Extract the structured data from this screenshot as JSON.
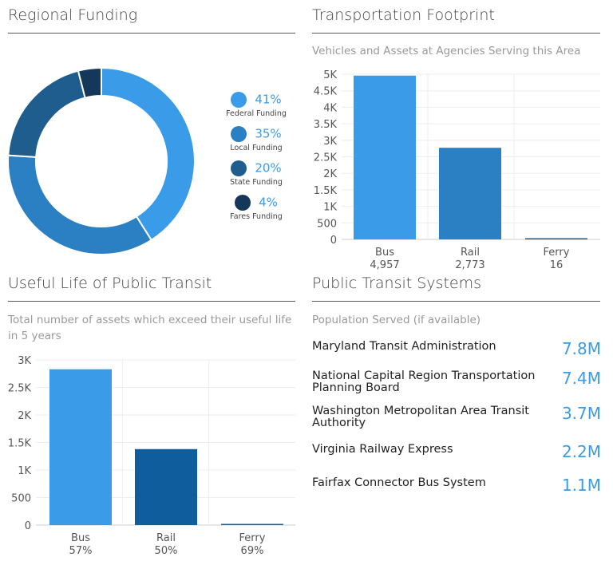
{
  "panels": {
    "regional": {
      "title": "Regional Funding"
    },
    "footprint": {
      "title": "Transportation Footprint",
      "subtitle": "Vehicles and Assets at Agencies Serving this Area"
    },
    "useful": {
      "title": "Useful Life of Public Transit",
      "subtitle": "Total number of assets which exceed their useful life in 5 years"
    },
    "systems": {
      "title": "Public Transit Systems",
      "subtitle": "Population Served (if available)",
      "items": [
        {
          "name": "Maryland Transit Administration",
          "value": "7.8M"
        },
        {
          "name": "National Capital Region Transportation Planning Board",
          "value": "7.4M"
        },
        {
          "name": "Washington Metropolitan Area Transit Authority",
          "value": "3.7M"
        },
        {
          "name": "Virginia Railway Express",
          "value": "2.2M"
        },
        {
          "name": "Fairfax Connector Bus System",
          "value": "1.1M"
        }
      ]
    }
  },
  "chart_data": [
    {
      "type": "pie",
      "donut": true,
      "legend": "right",
      "slices": [
        {
          "label": "Federal Funding",
          "value": 41,
          "display": "41%",
          "color": "#3a9be8"
        },
        {
          "label": "Local Funding",
          "value": 35,
          "display": "35%",
          "color": "#2b7fc3"
        },
        {
          "label": "State Funding",
          "value": 20,
          "display": "20%",
          "color": "#1f5d8e"
        },
        {
          "label": "Fares Funding",
          "value": 4,
          "display": "4%",
          "color": "#15375a"
        }
      ]
    },
    {
      "type": "bar",
      "categories": [
        "Bus",
        "Rail",
        "Ferry"
      ],
      "values": [
        4957,
        2773,
        16
      ],
      "value_labels": [
        "4,957",
        "2,773",
        "16"
      ],
      "colors": [
        "#3a9be8",
        "#2b7fc3",
        "#1f5d8e"
      ],
      "ylim": [
        0,
        5000
      ],
      "yticks": [
        "0",
        "500",
        "1K",
        "1.5K",
        "2K",
        "2.5K",
        "3K",
        "3.5K",
        "4K",
        "4.5K",
        "5K"
      ],
      "grid": true
    },
    {
      "type": "bar",
      "categories": [
        "Bus",
        "Rail",
        "Ferry"
      ],
      "values": [
        2830,
        1380,
        10
      ],
      "value_labels": [
        "57%",
        "50%",
        "69%"
      ],
      "colors": [
        "#3a9be8",
        "#0f5d9c",
        "#1f5d8e"
      ],
      "ylim": [
        0,
        3000
      ],
      "yticks": [
        "0",
        "500",
        "1K",
        "1.5K",
        "2K",
        "2.5K",
        "3K"
      ],
      "grid": true
    }
  ]
}
